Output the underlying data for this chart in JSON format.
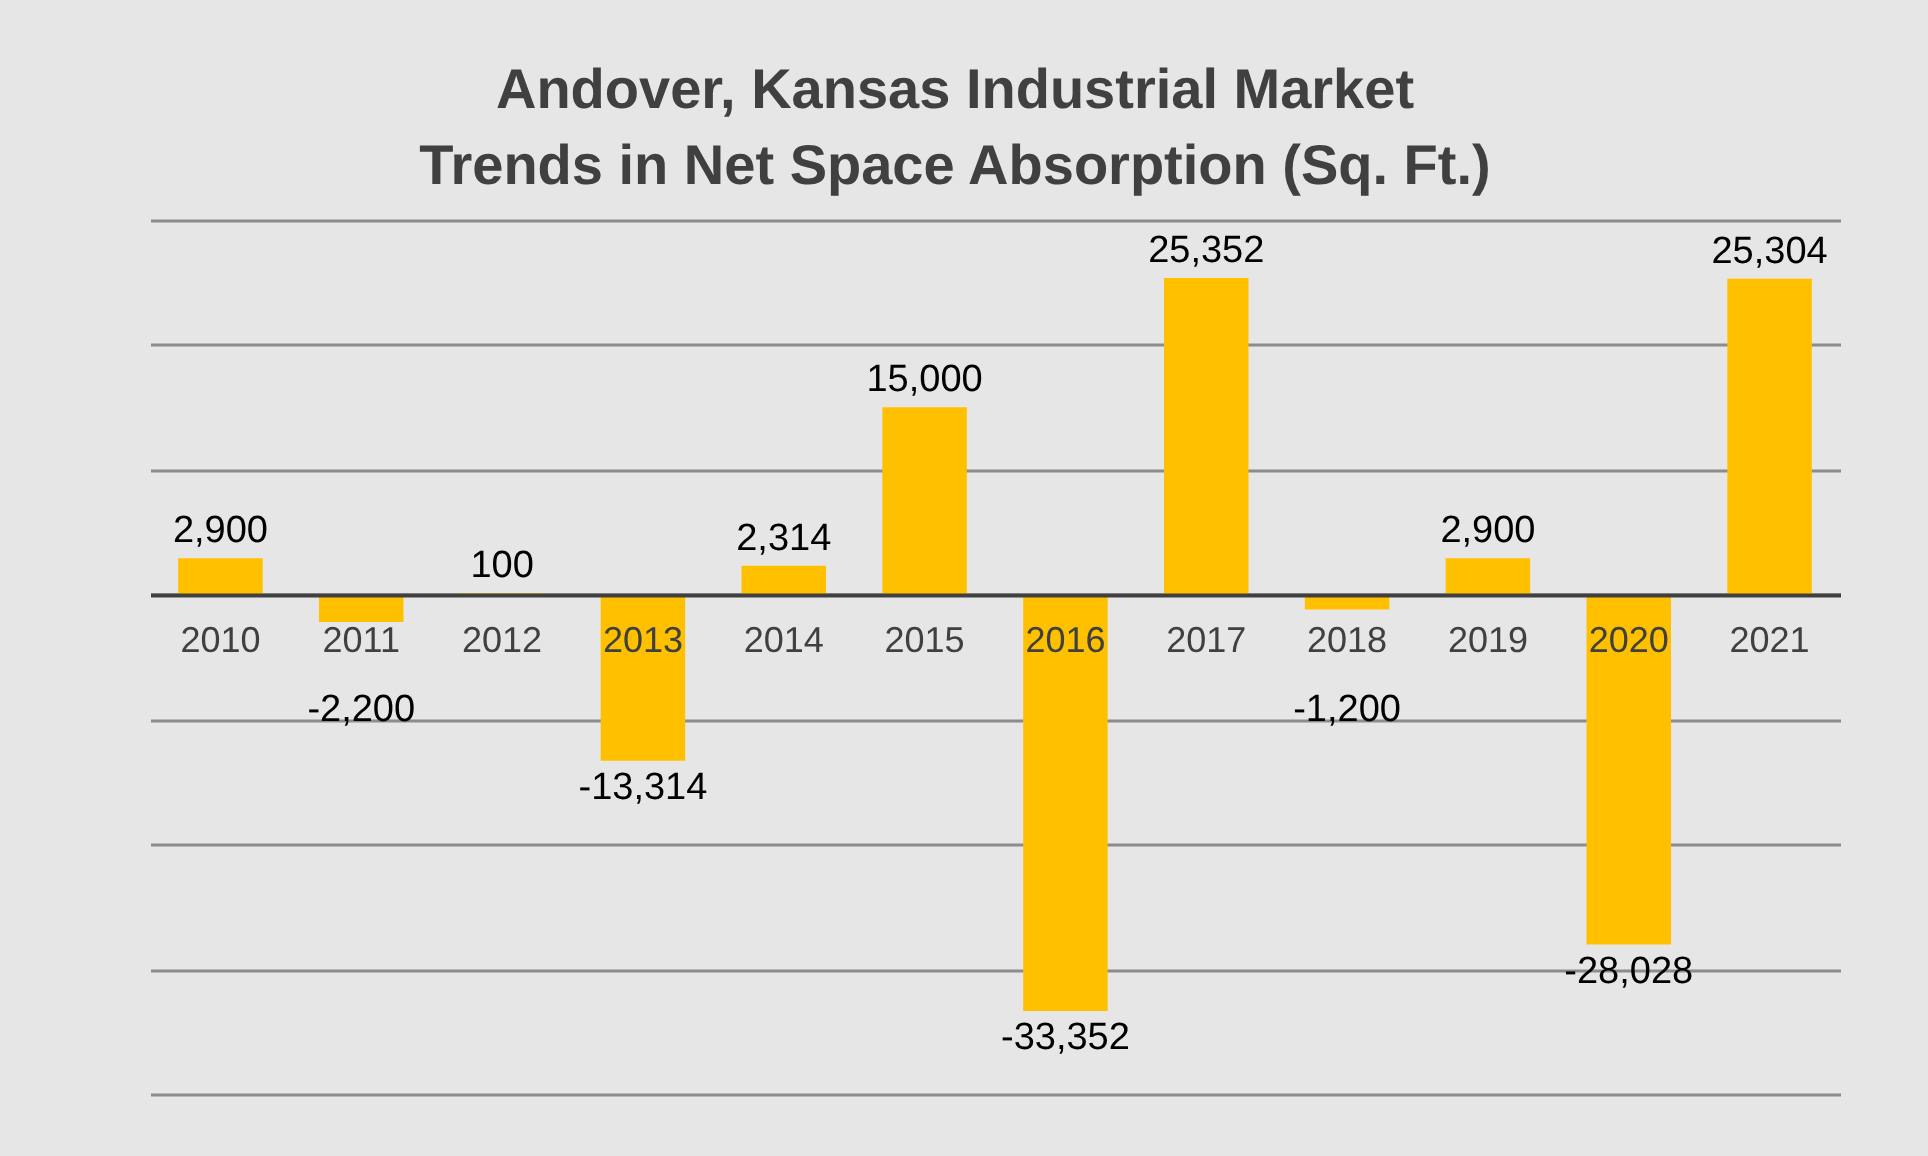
{
  "chart_data": {
    "type": "bar",
    "title": "Andover, Kansas Industrial Market\nTrends in Net Space Absorption (Sq. Ft.)",
    "categories": [
      "2010",
      "2011",
      "2012",
      "2013",
      "2014",
      "2015",
      "2016",
      "2017",
      "2018",
      "2019",
      "2020",
      "2021"
    ],
    "values": [
      2900,
      -2200,
      100,
      -13314,
      2314,
      15000,
      -33352,
      25352,
      -1200,
      2900,
      -28028,
      25304
    ],
    "value_labels": [
      "2,900",
      "-2,200",
      "100",
      "-13,314",
      "2,314",
      "15,000",
      "-33,352",
      "25,352",
      "-1,200",
      "2,900",
      "-28,028",
      "25,304"
    ],
    "color": "#ffc000",
    "grid": "y",
    "ylim": [
      -40000,
      30000
    ],
    "yticks": [
      {
        "value": -40000,
        "label": null
      },
      {
        "value": -30000,
        "label": null
      },
      {
        "value": -20000,
        "label": null
      },
      {
        "value": -10000,
        "label": null
      },
      {
        "value": 0,
        "label": null
      },
      {
        "value": 10000,
        "label": null
      },
      {
        "value": 20000,
        "label": null
      },
      {
        "value": 30000,
        "label": null
      }
    ],
    "tick_labels": "x"
  }
}
